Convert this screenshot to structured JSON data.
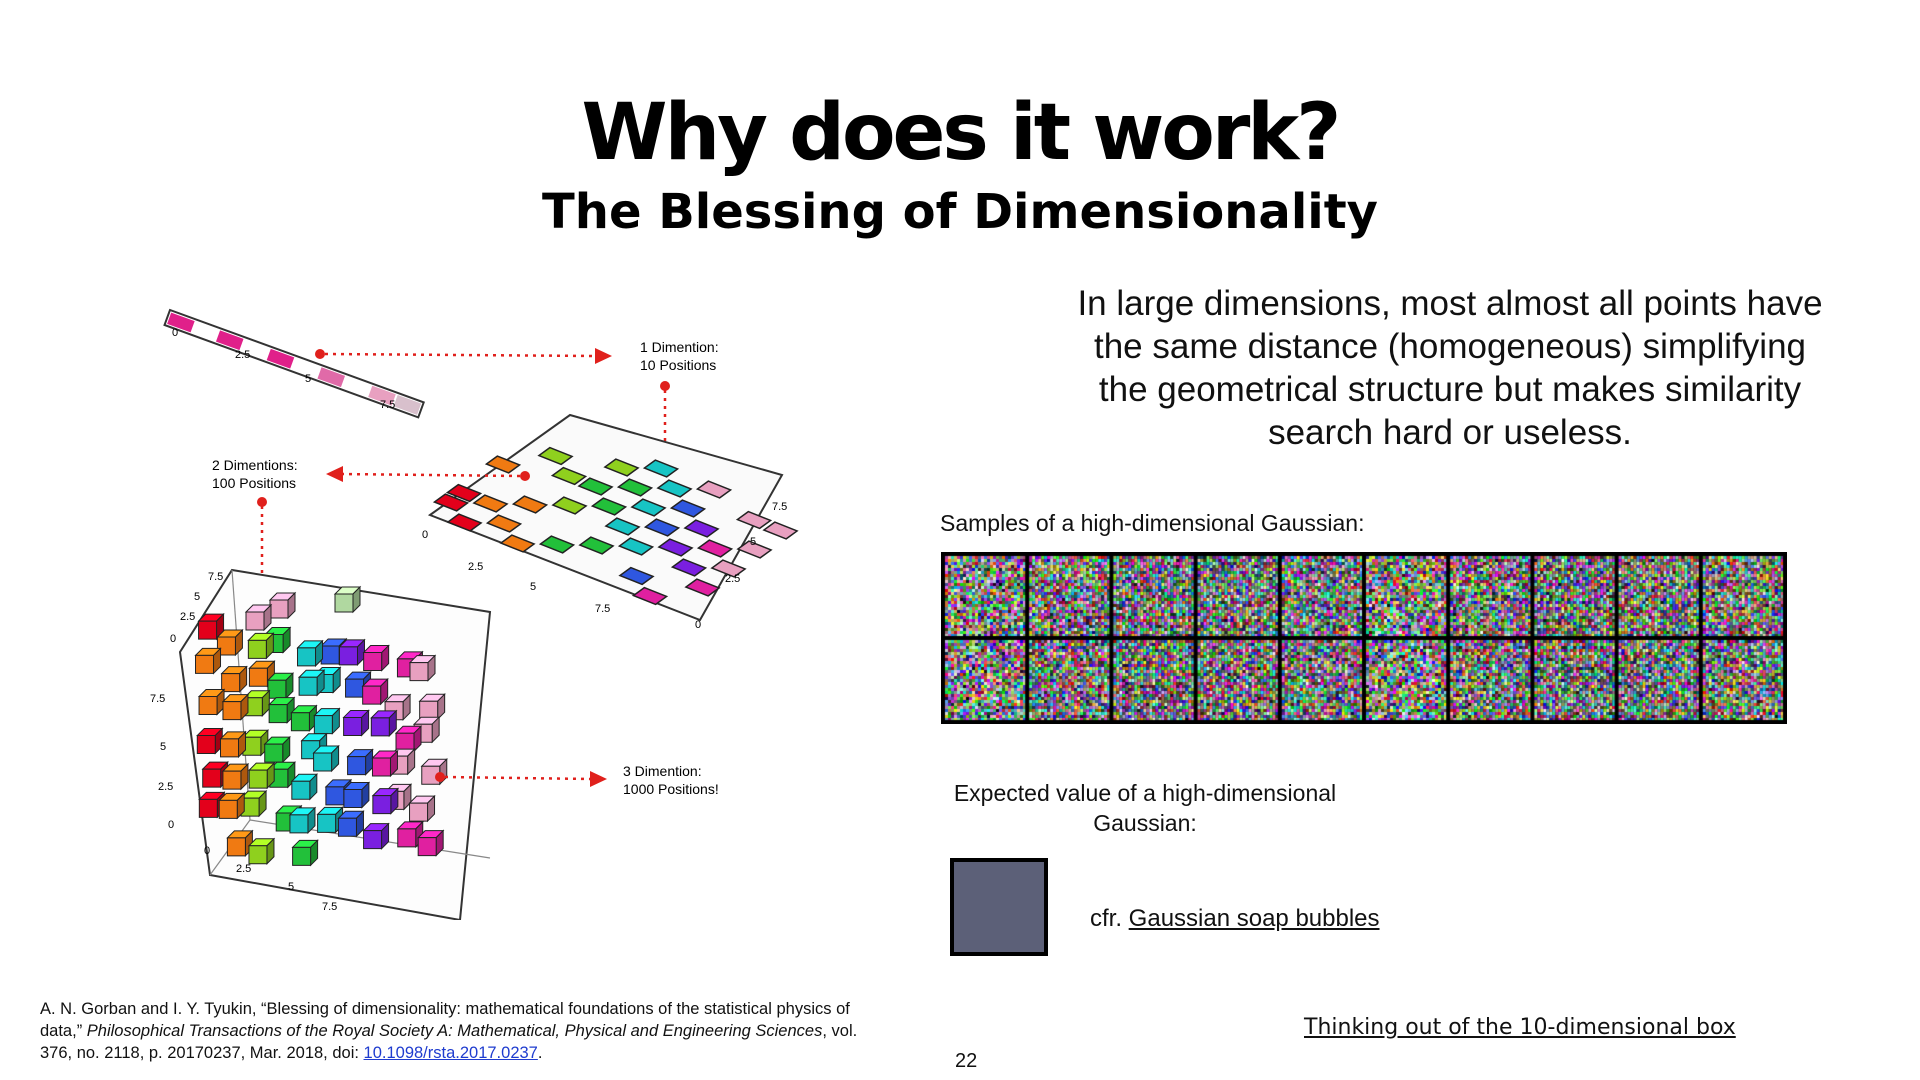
{
  "slide": {
    "title": "Why does it work?",
    "subtitle": "The Blessing of Dimensionality",
    "claim": "In large dimensions, most almost all points have the same distance (homogeneous) simplifying the geometrical structure but makes similarity search hard or useless.",
    "samples_label": "Samples of a high-dimensional Gaussian:",
    "expected_label": "Expected value of a high-dimensional Gaussian:",
    "cfr_prefix": "cfr. ",
    "cfr_link": "Gaussian soap bubbles",
    "thinking_link": "Thinking out of the 10-dimensional box",
    "page_number": "22",
    "mean_color": "#5c6078",
    "sample_grid": {
      "rows": 2,
      "cols": 10
    }
  },
  "citation": {
    "part1": "A. N. Gorban and I. Y. Tyukin, “Blessing of dimensionality: mathematical foundations of the statistical physics of data,” ",
    "journal": "Philosophical Transactions of the Royal Society A: Mathematical, Physical and Engineering Sciences",
    "part2": ", vol. 376, no. 2118, p. 20170237, Mar. 2018, doi: ",
    "doi": "10.1098/rsta.2017.0237",
    "end": "."
  },
  "figure": {
    "labels": {
      "one_d_line1": "1 Dimention:",
      "one_d_line2": "10 Positions",
      "two_d_line1": "2 Dimentions:",
      "two_d_line2": "100 Positions",
      "three_d_line1": "3 Dimention:",
      "three_d_line2": "1000 Positions!"
    },
    "ticks": [
      "0",
      "2.5",
      "5",
      "7.5"
    ],
    "arrow_color": "#e0201c",
    "cube_colors": [
      "#e3001b",
      "#f07a12",
      "#8fd01e",
      "#22c03a",
      "#17c4c4",
      "#2f57e0",
      "#7a1fe0",
      "#e020a0",
      "#e8a0c0",
      "#b0d8a0"
    ]
  }
}
